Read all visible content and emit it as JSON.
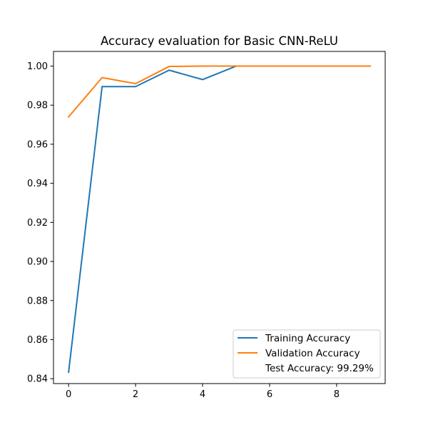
{
  "chart_data": {
    "type": "line",
    "title": "Accuracy evaluation for Basic CNN-ReLU",
    "xlabel": "",
    "ylabel": "",
    "x": [
      0,
      1,
      2,
      3,
      4,
      5,
      6,
      7,
      8,
      9
    ],
    "xlim": [
      -0.45,
      9.45
    ],
    "ylim": [
      0.8375,
      1.0075
    ],
    "xticks": [
      0,
      2,
      4,
      6,
      8
    ],
    "xtick_labels": [
      "0",
      "2",
      "4",
      "6",
      "8"
    ],
    "yticks": [
      0.84,
      0.86,
      0.88,
      0.9,
      0.92,
      0.94,
      0.96,
      0.98,
      1.0
    ],
    "ytick_labels": [
      "0.84",
      "0.86",
      "0.88",
      "0.90",
      "0.92",
      "0.94",
      "0.96",
      "0.98",
      "1.00"
    ],
    "grid": false,
    "legend_position": "lower-right",
    "series": [
      {
        "name": "Training Accuracy",
        "color": "#1f77b4",
        "values": [
          0.8433,
          0.9895,
          0.9895,
          0.9979,
          0.9931,
          1.0,
          1.0,
          1.0,
          1.0,
          1.0
        ]
      },
      {
        "name": "Validation Accuracy",
        "color": "#ff7f0e",
        "values": [
          0.974,
          0.9941,
          0.991,
          0.9998,
          1.0,
          1.0,
          1.0,
          1.0,
          1.0,
          1.0
        ]
      }
    ],
    "legend_extra": "Test Accuracy: 99.29%"
  }
}
